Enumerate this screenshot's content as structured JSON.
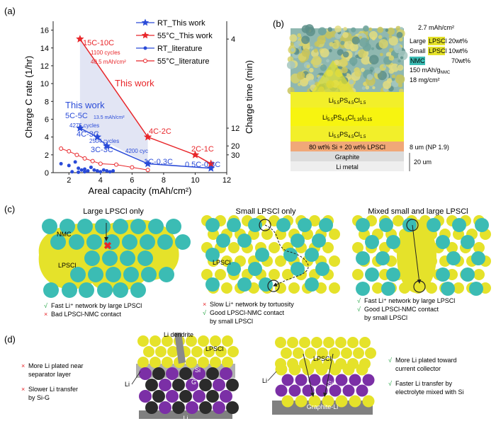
{
  "panel_labels": {
    "a": "(a)",
    "b": "(b)",
    "c": "(c)",
    "d": "(d)"
  },
  "colors": {
    "red": "#e8262a",
    "blue": "#2a4bd8",
    "yellow": "#e5e22a",
    "teal": "#3bbcb4",
    "purple": "#7b2fa6",
    "grey": "#808080",
    "dark": "#2b2b2b"
  },
  "chart_data": {
    "type": "line",
    "xlabel": "Areal capacity (mAh/cm²)",
    "ylabel": "Charge C rate (1/hr)",
    "y2label": "Charge time (min)",
    "xlim": [
      1,
      12
    ],
    "ylim": [
      0,
      17
    ],
    "xticks": [
      "2",
      "4",
      "6",
      "8",
      "10",
      "12"
    ],
    "yticks": [
      "0",
      "2",
      "4",
      "6",
      "8",
      "10",
      "12",
      "14",
      "16"
    ],
    "y2ticks": [
      "4",
      "12",
      "20",
      "30"
    ],
    "y2tick_values": [
      15,
      5,
      3,
      2
    ],
    "legend": [
      "RT_This work",
      "55°C_This work",
      "RT_literature",
      "55°C_literature"
    ],
    "series": [
      {
        "name": "RT_This work",
        "x": [
          2.7,
          3.8,
          4.4,
          7.0,
          11.0
        ],
        "y": [
          5.0,
          4.0,
          3.0,
          1.0,
          0.5
        ]
      },
      {
        "name": "55°C_This work",
        "x": [
          2.7,
          7.0,
          10.0,
          11.0
        ],
        "y": [
          15.0,
          4.0,
          2.0,
          1.0
        ]
      },
      {
        "name": "RT_literature",
        "x": [
          1.5,
          2.0,
          2.4,
          2.6,
          2.8,
          3.0,
          3.2,
          3.4,
          3.6,
          3.8,
          4.0,
          4.2,
          4.4,
          4.6,
          4.8,
          2.2,
          2.6,
          3.0
        ],
        "y": [
          1.0,
          0.8,
          1.2,
          0.5,
          0.3,
          0.4,
          0.2,
          0.6,
          0.3,
          0.2,
          0.1,
          0.3,
          0.2,
          0.1,
          0.2,
          0.1,
          0.05,
          0.1
        ]
      },
      {
        "name": "55°C_literature",
        "x": [
          1.5,
          2.0,
          2.5,
          3.0,
          3.5,
          4.0,
          5.0,
          6.0,
          7.0
        ],
        "y": [
          2.7,
          2.4,
          2.0,
          1.6,
          1.3,
          1.0,
          0.9,
          0.6,
          0.3
        ]
      }
    ],
    "annotations": {
      "this_work_red": "This work",
      "this_work_blue": "This work",
      "p15c": "15C-10C",
      "p15c_cycles": "1100 cycles",
      "p15c_mah": "40.5 mAh/cm²",
      "p4c2c": "4C-2C",
      "p2c1c": "2C-1C",
      "p5c": "5C-5C",
      "p5c_mah": "13.5 mAh/cm²",
      "p5c_cycles": "4275 cycles",
      "p4c3c": "4C-3C",
      "p4c3c_cycles": "2504 cycles",
      "p3c3c": "3C-3C",
      "p3c3c_cycles": "4200 cyc",
      "p1c": "1C-0.3C",
      "p05c": "0.5C-0.3C"
    }
  },
  "panel_b": {
    "capacity_top": "2.7 mAh/cm²",
    "legend_large": "Large",
    "legend_small": "Small",
    "lpscl": "LPSCl",
    "large_pct": "20wt%",
    "small_pct": "10wt%",
    "nmc": "NMC",
    "nmc_pct": "70wt%",
    "specific": "150 mAh/g",
    "specific_sub": "NMC",
    "loading": "18 mg/cm²",
    "layer1": "Li5.5PS4.5Cl1.5",
    "layer2": "Li5.5PS4.5Cl1.35I0.15",
    "layer3": "Li5.5PS4.5Cl1.5",
    "layer4": "80 wt% Si + 20 wt% LPSCl",
    "layer4_note": "8 um (NP 1.9)",
    "layer5": "Graphite",
    "layer6": "Li metal",
    "bottom_note": "20 um"
  },
  "panel_c": {
    "t1": "Large LPSCl only",
    "t2": "Small LPSCl only",
    "t3": "Mixed small and large LPSCl",
    "nmc": "NMC",
    "lpscl": "LPSCl",
    "c1a_mark": "√",
    "c1a": "Fast Li⁺ network by large LPSCl",
    "c1b_mark": "×",
    "c1b": "Bad LPSCl-NMC contact",
    "c2a_mark": "×",
    "c2a": "Slow Li⁺ network by tortuosity",
    "c2b_mark": "√",
    "c2b": "Good LPSCl-NMC contact",
    "c2c": "by small LPSCl",
    "c3a_mark": "√",
    "c3a": "Fast Li⁺ network by large LPSCl",
    "c3b_mark": "√",
    "c3b": "Good LPSCl-NMC contact",
    "c3c": "by small LPSCl"
  },
  "panel_d": {
    "l1_mark": "×",
    "l1a": "More Li plated near",
    "l1b": "separator layer",
    "l2_mark": "×",
    "l2a": "Slower Li transfer",
    "l2b": "by Si-G",
    "r1_mark": "√",
    "r1a": "More Li plated toward",
    "r1b": "current collector",
    "r2_mark": "√",
    "r2a": "Faster Li transfer by",
    "r2b": "electrolyte mixed with Si",
    "li_dendrite": "Li dendrite",
    "lpscl": "LPSCl",
    "si": "Si",
    "g": "G",
    "li": "Li",
    "li_bottom": "Li",
    "graphite_li": "Graphite-Li"
  }
}
